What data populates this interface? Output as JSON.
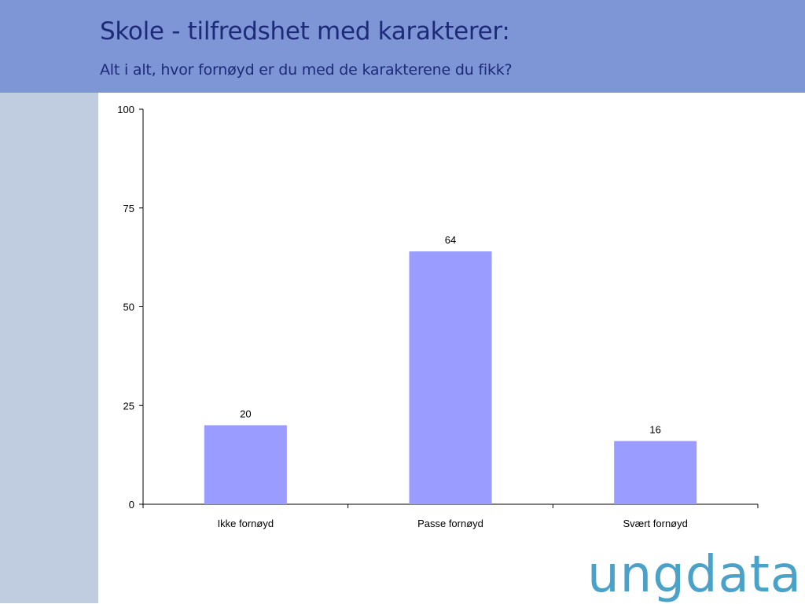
{
  "header": {
    "title": "Skole - tilfredshet med karakterer:",
    "subtitle": "Alt i alt, hvor fornøyd er du med de karakterene du fikk?"
  },
  "logo": {
    "text": "ungdata",
    "color": "#4aa2c8"
  },
  "colors": {
    "header_bg": "#7f96d6",
    "side_strip": "#c0cce0",
    "bar": "#9b9cff",
    "title_text": "#1c2a78"
  },
  "chart_data": {
    "type": "bar",
    "categories": [
      "Ikke fornøyd",
      "Passe fornøyd",
      "Svært fornøyd"
    ],
    "values": [
      20,
      64,
      16
    ],
    "data_labels": [
      "20",
      "64",
      "16"
    ],
    "ylim": [
      0,
      100
    ],
    "yticks": [
      0,
      25,
      50,
      75,
      100
    ],
    "grid": false,
    "legend": "none",
    "bar_color": "#9b9cff"
  }
}
